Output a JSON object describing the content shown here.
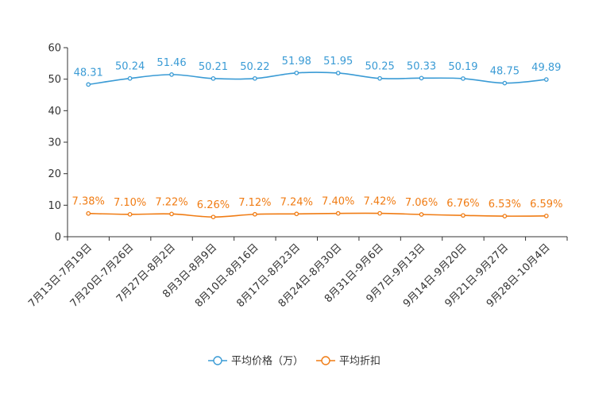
{
  "chart_data": {
    "type": "line",
    "title": "",
    "xlabel": "",
    "ylabel": "",
    "ylim": [
      0,
      60
    ],
    "yticks": [
      0,
      10,
      20,
      30,
      40,
      50,
      60
    ],
    "grid": false,
    "legend_position": "bottom",
    "categories": [
      "7月13日-7月19日",
      "7月20日-7月26日",
      "7月27日-8月2日",
      "8月3日-8月9日",
      "8月10日-8月16日",
      "8月17日-8月23日",
      "8月24日-8月30日",
      "8月31日-9月6日",
      "9月7日-9月13日",
      "9月14日-9月20日",
      "9月21日-9月27日",
      "9月28日-10月4日"
    ],
    "series": [
      {
        "name": "平均价格（万）",
        "color": "#3a9bd5",
        "values": [
          48.31,
          50.24,
          51.46,
          50.21,
          50.22,
          51.98,
          51.95,
          50.25,
          50.33,
          50.19,
          48.75,
          49.89
        ],
        "labels": [
          "48.31",
          "50.24",
          "51.46",
          "50.21",
          "50.22",
          "51.98",
          "51.95",
          "50.25",
          "50.33",
          "50.19",
          "48.75",
          "49.89"
        ]
      },
      {
        "name": "平均折扣",
        "color": "#f07c14",
        "values": [
          7.38,
          7.1,
          7.22,
          6.26,
          7.12,
          7.24,
          7.4,
          7.42,
          7.06,
          6.76,
          6.53,
          6.59
        ],
        "labels": [
          "7.38%",
          "7.10%",
          "7.22%",
          "6.26%",
          "7.12%",
          "7.24%",
          "7.40%",
          "7.42%",
          "7.06%",
          "6.76%",
          "6.53%",
          "6.59%"
        ]
      }
    ]
  }
}
